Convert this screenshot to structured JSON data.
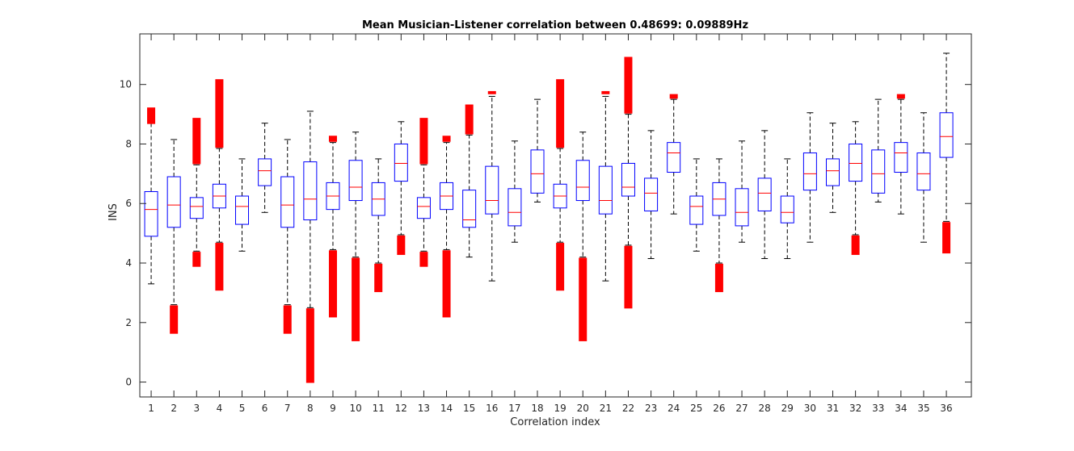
{
  "chart_data": {
    "type": "box",
    "title": "Mean Musician-Listener correlation between 0.48699: 0.09889Hz",
    "xlabel": "Correlation index",
    "ylabel": "INS",
    "ylim": [
      -0.5,
      11.7
    ],
    "yticks": [
      0,
      2,
      4,
      6,
      8,
      10
    ],
    "grid": false,
    "colors": {
      "box": "#0000ff",
      "median": "#ff0000",
      "outlier": "#ff0000",
      "whisker": "#000000",
      "axis": "#262626"
    },
    "categories": [
      "1",
      "2",
      "3",
      "4",
      "5",
      "6",
      "7",
      "8",
      "9",
      "10",
      "11",
      "12",
      "13",
      "14",
      "15",
      "16",
      "17",
      "18",
      "19",
      "20",
      "21",
      "22",
      "23",
      "24",
      "25",
      "26",
      "27",
      "28",
      "29",
      "30",
      "31",
      "32",
      "33",
      "34",
      "35",
      "36"
    ],
    "boxes": [
      {
        "q1": 4.9,
        "median": 5.8,
        "q3": 6.4,
        "lower_whisker": 3.3,
        "upper_whisker": 8.7,
        "outlier_ranges": [
          [
            8.7,
            9.2
          ]
        ]
      },
      {
        "q1": 5.2,
        "median": 5.95,
        "q3": 6.9,
        "lower_whisker": 2.6,
        "upper_whisker": 8.15,
        "outlier_ranges": [
          [
            1.65,
            2.55
          ]
        ]
      },
      {
        "q1": 5.5,
        "median": 5.9,
        "q3": 6.2,
        "lower_whisker": 4.4,
        "upper_whisker": 7.3,
        "outlier_ranges": [
          [
            7.35,
            8.85
          ],
          [
            3.9,
            4.35
          ]
        ]
      },
      {
        "q1": 5.85,
        "median": 6.25,
        "q3": 6.65,
        "lower_whisker": 4.7,
        "upper_whisker": 7.85,
        "outlier_ranges": [
          [
            7.9,
            10.15
          ],
          [
            3.1,
            4.65
          ]
        ]
      },
      {
        "q1": 5.3,
        "median": 5.9,
        "q3": 6.25,
        "lower_whisker": 4.4,
        "upper_whisker": 7.5,
        "outlier_ranges": []
      },
      {
        "q1": 6.6,
        "median": 7.1,
        "q3": 7.5,
        "lower_whisker": 5.7,
        "upper_whisker": 8.7,
        "outlier_ranges": []
      },
      {
        "q1": 5.2,
        "median": 5.95,
        "q3": 6.9,
        "lower_whisker": 2.6,
        "upper_whisker": 8.15,
        "outlier_ranges": [
          [
            1.65,
            2.55
          ]
        ]
      },
      {
        "q1": 5.45,
        "median": 6.15,
        "q3": 7.4,
        "lower_whisker": 2.5,
        "upper_whisker": 9.1,
        "outlier_ranges": [
          [
            0,
            2.45
          ]
        ]
      },
      {
        "q1": 5.8,
        "median": 6.25,
        "q3": 6.7,
        "lower_whisker": 4.45,
        "upper_whisker": 8.05,
        "outlier_ranges": [
          [
            8.1,
            8.25
          ],
          [
            2.2,
            4.4
          ]
        ]
      },
      {
        "q1": 6.1,
        "median": 6.55,
        "q3": 7.45,
        "lower_whisker": 4.2,
        "upper_whisker": 8.4,
        "outlier_ranges": [
          [
            1.4,
            4.15
          ]
        ]
      },
      {
        "q1": 5.6,
        "median": 6.15,
        "q3": 6.7,
        "lower_whisker": 4.0,
        "upper_whisker": 7.5,
        "outlier_ranges": [
          [
            3.05,
            3.95
          ]
        ]
      },
      {
        "q1": 6.75,
        "median": 7.35,
        "q3": 8.0,
        "lower_whisker": 4.95,
        "upper_whisker": 8.75,
        "outlier_ranges": [
          [
            4.3,
            4.9
          ]
        ]
      },
      {
        "q1": 5.5,
        "median": 5.9,
        "q3": 6.2,
        "lower_whisker": 4.4,
        "upper_whisker": 7.3,
        "outlier_ranges": [
          [
            7.35,
            8.85
          ],
          [
            3.9,
            4.35
          ]
        ]
      },
      {
        "q1": 5.8,
        "median": 6.25,
        "q3": 6.7,
        "lower_whisker": 4.45,
        "upper_whisker": 8.05,
        "outlier_ranges": [
          [
            8.1,
            8.25
          ],
          [
            2.2,
            4.4
          ]
        ]
      },
      {
        "q1": 5.2,
        "median": 5.45,
        "q3": 6.45,
        "lower_whisker": 4.2,
        "upper_whisker": 8.3,
        "outlier_ranges": [
          [
            8.35,
            9.3
          ]
        ]
      },
      {
        "q1": 5.65,
        "median": 6.1,
        "q3": 7.25,
        "lower_whisker": 3.4,
        "upper_whisker": 9.6,
        "outlier_ranges": [
          [
            9.7,
            9.75
          ]
        ]
      },
      {
        "q1": 5.25,
        "median": 5.7,
        "q3": 6.5,
        "lower_whisker": 4.7,
        "upper_whisker": 8.1,
        "outlier_ranges": []
      },
      {
        "q1": 6.35,
        "median": 7.0,
        "q3": 7.8,
        "lower_whisker": 6.05,
        "upper_whisker": 9.5,
        "outlier_ranges": []
      },
      {
        "q1": 5.85,
        "median": 6.25,
        "q3": 6.65,
        "lower_whisker": 4.7,
        "upper_whisker": 7.85,
        "outlier_ranges": [
          [
            7.9,
            10.15
          ],
          [
            3.1,
            4.65
          ]
        ]
      },
      {
        "q1": 6.1,
        "median": 6.55,
        "q3": 7.45,
        "lower_whisker": 4.2,
        "upper_whisker": 8.4,
        "outlier_ranges": [
          [
            1.4,
            4.15
          ]
        ]
      },
      {
        "q1": 5.65,
        "median": 6.1,
        "q3": 7.25,
        "lower_whisker": 3.4,
        "upper_whisker": 9.6,
        "outlier_ranges": [
          [
            9.7,
            9.75
          ]
        ]
      },
      {
        "q1": 6.25,
        "median": 6.55,
        "q3": 7.35,
        "lower_whisker": 4.6,
        "upper_whisker": 9.0,
        "outlier_ranges": [
          [
            9.05,
            10.9
          ],
          [
            2.5,
            4.55
          ]
        ]
      },
      {
        "q1": 5.75,
        "median": 6.35,
        "q3": 6.85,
        "lower_whisker": 4.15,
        "upper_whisker": 8.45,
        "outlier_ranges": []
      },
      {
        "q1": 7.05,
        "median": 7.7,
        "q3": 8.05,
        "lower_whisker": 5.65,
        "upper_whisker": 9.5,
        "outlier_ranges": [
          [
            9.55,
            9.65
          ]
        ]
      },
      {
        "q1": 5.3,
        "median": 5.9,
        "q3": 6.25,
        "lower_whisker": 4.4,
        "upper_whisker": 7.5,
        "outlier_ranges": []
      },
      {
        "q1": 5.6,
        "median": 6.15,
        "q3": 6.7,
        "lower_whisker": 4.0,
        "upper_whisker": 7.5,
        "outlier_ranges": [
          [
            3.05,
            3.95
          ]
        ]
      },
      {
        "q1": 5.25,
        "median": 5.7,
        "q3": 6.5,
        "lower_whisker": 4.7,
        "upper_whisker": 8.1,
        "outlier_ranges": []
      },
      {
        "q1": 5.75,
        "median": 6.35,
        "q3": 6.85,
        "lower_whisker": 4.15,
        "upper_whisker": 8.45,
        "outlier_ranges": []
      },
      {
        "q1": 5.35,
        "median": 5.7,
        "q3": 6.25,
        "lower_whisker": 4.15,
        "upper_whisker": 7.5,
        "outlier_ranges": []
      },
      {
        "q1": 6.45,
        "median": 7.0,
        "q3": 7.7,
        "lower_whisker": 4.7,
        "upper_whisker": 9.05,
        "outlier_ranges": []
      },
      {
        "q1": 6.6,
        "median": 7.1,
        "q3": 7.5,
        "lower_whisker": 5.7,
        "upper_whisker": 8.7,
        "outlier_ranges": []
      },
      {
        "q1": 6.75,
        "median": 7.35,
        "q3": 8.0,
        "lower_whisker": 4.95,
        "upper_whisker": 8.75,
        "outlier_ranges": [
          [
            4.3,
            4.9
          ]
        ]
      },
      {
        "q1": 6.35,
        "median": 7.0,
        "q3": 7.8,
        "lower_whisker": 6.05,
        "upper_whisker": 9.5,
        "outlier_ranges": []
      },
      {
        "q1": 7.05,
        "median": 7.7,
        "q3": 8.05,
        "lower_whisker": 5.65,
        "upper_whisker": 9.5,
        "outlier_ranges": [
          [
            9.55,
            9.65
          ]
        ]
      },
      {
        "q1": 6.45,
        "median": 7.0,
        "q3": 7.7,
        "lower_whisker": 4.7,
        "upper_whisker": 9.05,
        "outlier_ranges": []
      },
      {
        "q1": 7.55,
        "median": 8.25,
        "q3": 9.05,
        "lower_whisker": 5.4,
        "upper_whisker": 11.05,
        "outlier_ranges": [
          [
            4.35,
            5.35
          ]
        ]
      }
    ]
  }
}
